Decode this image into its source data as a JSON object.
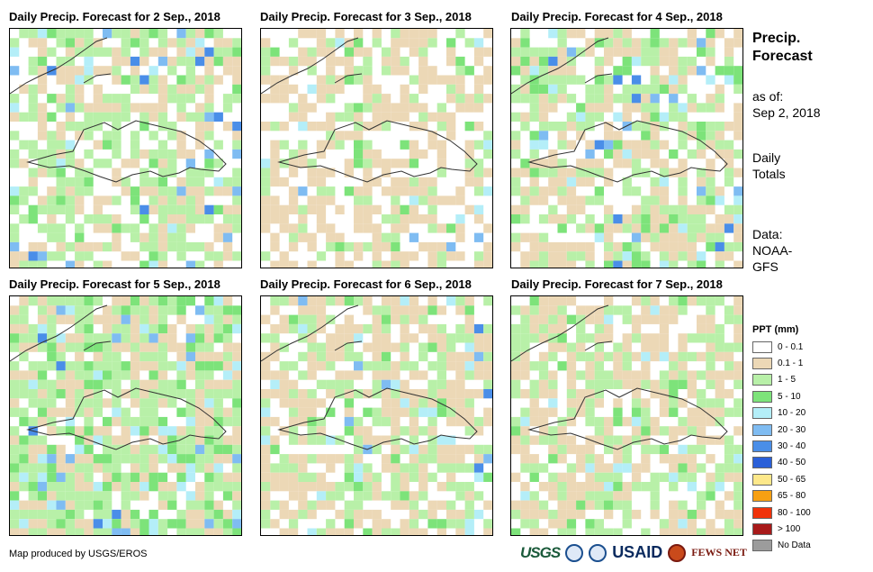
{
  "panels": [
    {
      "title": "Daily Precip. Forecast for 2 Sep., 2018"
    },
    {
      "title": "Daily Precip. Forecast for 3 Sep., 2018"
    },
    {
      "title": "Daily Precip. Forecast for 4 Sep., 2018"
    },
    {
      "title": "Daily Precip. Forecast for 5 Sep., 2018"
    },
    {
      "title": "Daily Precip. Forecast for 6 Sep., 2018"
    },
    {
      "title": "Daily Precip. Forecast for 7 Sep., 2018"
    }
  ],
  "sidebar": {
    "title_line1": "Precip.",
    "title_line2": "Forecast",
    "asof_line1": "as of:",
    "asof_line2": "Sep 2, 2018",
    "daily_line1": "Daily",
    "daily_line2": "Totals",
    "data_line1": "Data:",
    "data_line2": "NOAA-",
    "data_line3": "GFS"
  },
  "legend": {
    "title": "PPT (mm)",
    "items": [
      {
        "label": "0 - 0.1",
        "color": "#ffffff"
      },
      {
        "label": "0.1 - 1",
        "color": "#ecd8b6"
      },
      {
        "label": "1 - 5",
        "color": "#b8f0a8"
      },
      {
        "label": "5 - 10",
        "color": "#7de37a"
      },
      {
        "label": "10 - 20",
        "color": "#b4eef8"
      },
      {
        "label": "20 - 30",
        "color": "#7fbcf2"
      },
      {
        "label": "30 - 40",
        "color": "#4a8ee8"
      },
      {
        "label": "40 - 50",
        "color": "#2a5fd8"
      },
      {
        "label": "50 - 65",
        "color": "#fde88a"
      },
      {
        "label": "65 - 80",
        "color": "#f7a012"
      },
      {
        "label": "80 - 100",
        "color": "#f0320a"
      },
      {
        "label": "> 100",
        "color": "#a81a1a"
      },
      {
        "label": "No Data",
        "color": "#9c9c9c"
      }
    ]
  },
  "footer": {
    "credit": "Map produced by USGS/EROS",
    "logo_usgs": "USGS",
    "logo_usaid": "USAID",
    "logo_fews": "FEWS NET"
  }
}
